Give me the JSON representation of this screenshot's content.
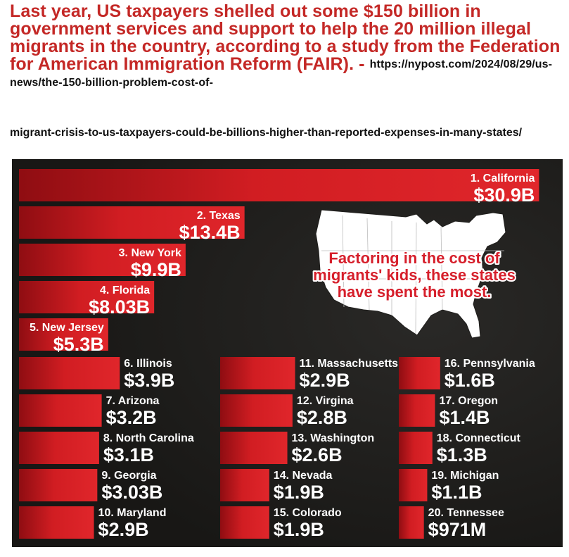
{
  "header": {
    "headline": "Last year, US taxpayers shelled out some $150 billion in government services and support to help the 20 million illegal migrants in the country, according to a study from the Federation for American Immigration Reform (FAIR). -",
    "source_part1": "https://nypost.com/2024/08/29/us-news/the-150-billion-problem-cost-of-",
    "source_part2": "migrant-crisis-to-us-taxpayers-could-be-billions-higher-than-reported-expenses-in-many-states/"
  },
  "colors": {
    "bar": "#d11d22",
    "bar_dark": "#8f0d12",
    "panel": "#1f1e1c",
    "headline": "#c42826",
    "callout": "#d61f2b"
  },
  "chart_data": {
    "type": "bar",
    "orientation": "horizontal",
    "annotation": [
      "Factoring in the cost of",
      "migrants' kids, these states",
      "have spent the most."
    ],
    "map_icon": "us-map-icon",
    "categories": [
      "1. California",
      "2. Texas",
      "3. New York",
      "4. Florida",
      "5. New Jersey",
      "6. Illinois",
      "7. Arizona",
      "8. North Carolina",
      "9. Georgia",
      "10. Maryland",
      "11. Massachusetts",
      "12. Virgina",
      "13. Washington",
      "14. Nevada",
      "15. Colorado",
      "16. Pennsylvania",
      "17. Oregon",
      "18. Connecticut",
      "19. Michigan",
      "20. Tennessee"
    ],
    "value_labels": [
      "$30.9B",
      "$13.4B",
      "$9.9B",
      "$8.03B",
      "$5.3B",
      "$3.9B",
      "$3.2B",
      "$3.1B",
      "$3.03B",
      "$2.9B",
      "$2.9B",
      "$2.8B",
      "$2.6B",
      "$1.9B",
      "$1.9B",
      "$1.6B",
      "$1.4B",
      "$1.3B",
      "$1.1B",
      "$971M"
    ],
    "values": [
      30.9,
      13.4,
      9.9,
      8.03,
      5.3,
      3.9,
      3.2,
      3.1,
      3.03,
      2.9,
      2.9,
      2.8,
      2.6,
      1.9,
      1.9,
      1.6,
      1.4,
      1.3,
      1.1,
      0.971
    ],
    "unit": "billion USD"
  }
}
